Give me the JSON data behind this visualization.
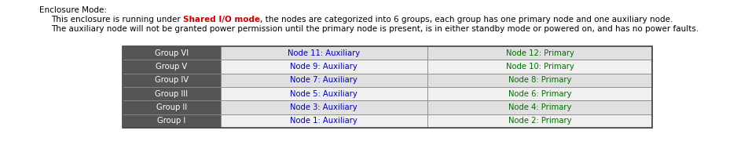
{
  "title": "Enclosure Mode:",
  "line1_prefix": "This enclosure is running under ",
  "line1_highlight": "Shared I/O mode",
  "line1_suffix": ", the nodes are categorized into 6 groups, each group has one primary node and one auxiliary node.",
  "line2": "The auxiliary node will not be granted power permission until the primary node is present, is in either standby mode or powered on, and has no power faults.",
  "groups": [
    "Group VI",
    "Group V",
    "Group IV",
    "Group III",
    "Group II",
    "Group I"
  ],
  "auxiliary_nodes": [
    "Node 11: Auxiliary",
    "Node 9: Auxiliary",
    "Node 7: Auxiliary",
    "Node 5: Auxiliary",
    "Node 3: Auxiliary",
    "Node 1: Auxiliary"
  ],
  "primary_nodes": [
    "Node 12: Primary",
    "Node 10: Primary",
    "Node 8: Primary",
    "Node 6: Primary",
    "Node 4: Primary",
    "Node 2: Primary"
  ],
  "header_bg": "#555555",
  "header_text": "#ffffff",
  "row_bg_odd": "#e0e0e0",
  "row_bg_even": "#f0f0f0",
  "auxiliary_color": "#0000cc",
  "primary_color": "#007000",
  "title_color": "#000000",
  "highlight_color": "#cc0000",
  "body_color": "#000000",
  "fig_bg": "#ffffff"
}
